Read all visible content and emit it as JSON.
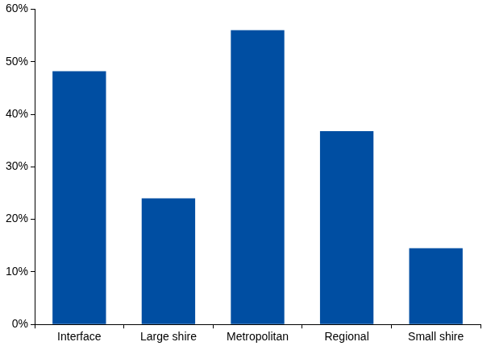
{
  "chart_data": {
    "type": "bar",
    "categories": [
      "Interface",
      "Large shire",
      "Metropolitan",
      "Regional",
      "Small shire"
    ],
    "values": [
      48.2,
      24,
      56,
      36.8,
      14.5
    ],
    "color": "#004ea2",
    "ylim": [
      0,
      60
    ],
    "yticks": [
      {
        "value": 0,
        "label": "0%"
      },
      {
        "value": 10,
        "label": "10%"
      },
      {
        "value": 20,
        "label": "20%"
      },
      {
        "value": 30,
        "label": "30%"
      },
      {
        "value": 40,
        "label": "40%"
      },
      {
        "value": 50,
        "label": "50%"
      },
      {
        "value": 60,
        "label": "60%"
      }
    ],
    "grid": false
  }
}
